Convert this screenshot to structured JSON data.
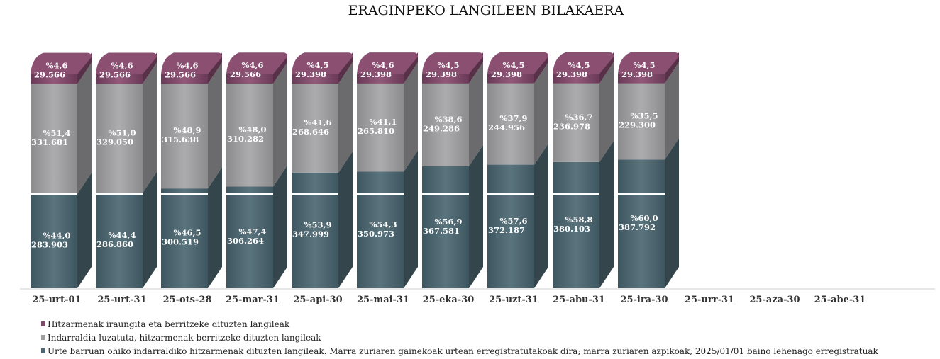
{
  "chart_data": {
    "type": "bar",
    "stacked": true,
    "title": "ERAGINPEKO LANGILEEN BILAKAERA",
    "categories": [
      "25-urt-01",
      "25-urt-31",
      "25-ots-28",
      "25-mar-31",
      "25-api-30",
      "25-mai-31",
      "25-eka-30",
      "25-uzt-31",
      "25-abu-31",
      "25-ira-30",
      "25-urr-31",
      "25-aza-30",
      "25-abe-31"
    ],
    "baseline_marker": "white horizontal line at the 283.903 level",
    "series": [
      {
        "name": "Urte barruan ohiko indarraldiko hitzarmenak dituzten langileak. Marra zuriaren gainekoak urtean erregistratutakoak dira; marra zuriaren azpikoak, 2025/01/01 baino lehenago erregistratuak",
        "color": "#4d6670",
        "values": [
          283903,
          286860,
          300519,
          306264,
          347999,
          350973,
          367581,
          372187,
          380103,
          387792,
          null,
          null,
          null
        ],
        "pct_labels": [
          "%44,0",
          "%44,4",
          "%46,5",
          "%47,4",
          "%53,9",
          "%54,3",
          "%56,9",
          "%57,6",
          "%58,8",
          "%60,0",
          null,
          null,
          null
        ],
        "value_labels": [
          "283.903",
          "286.860",
          "300.519",
          "306.264",
          "347.999",
          "350.973",
          "367.581",
          "372.187",
          "380.103",
          "387.792",
          null,
          null,
          null
        ]
      },
      {
        "name": "Indarraldia luzatuta, hitzarmenak berritzeke dituzten langileak",
        "color": "#9e9ea0",
        "values": [
          331681,
          329050,
          315638,
          310282,
          268646,
          265810,
          249286,
          244956,
          236978,
          229300,
          null,
          null,
          null
        ],
        "pct_labels": [
          "%51,4",
          "%51,0",
          "%48,9",
          "%48,0",
          "%41,6",
          "%41,1",
          "%38,6",
          "%37,9",
          "%36,7",
          "%35,5",
          null,
          null,
          null
        ],
        "value_labels": [
          "331.681",
          "329.050",
          "315.638",
          "310.282",
          "268.646",
          "265.810",
          "249.286",
          "244.956",
          "236.978",
          "229.300",
          null,
          null,
          null
        ]
      },
      {
        "name": "Hitzarmenak iraungita eta berritzeke dituzten langileak",
        "color": "#7e4868",
        "values": [
          29566,
          29566,
          29566,
          29566,
          29398,
          29398,
          29398,
          29398,
          29398,
          29398,
          null,
          null,
          null
        ],
        "pct_labels": [
          "%4,6",
          "%4,6",
          "%4,6",
          "%4,6",
          "%4,5",
          "%4,6",
          "%4,5",
          "%4,5",
          "%4,5",
          "%4,5",
          null,
          null,
          null
        ],
        "value_labels": [
          "29.566",
          "29.566",
          "29.566",
          "29.566",
          "29.398",
          "29.398",
          "29.398",
          "29.398",
          "29.398",
          "29.398",
          null,
          null,
          null
        ]
      }
    ],
    "legend_order": [
      2,
      1,
      0
    ],
    "legend_position": "bottom-left"
  }
}
